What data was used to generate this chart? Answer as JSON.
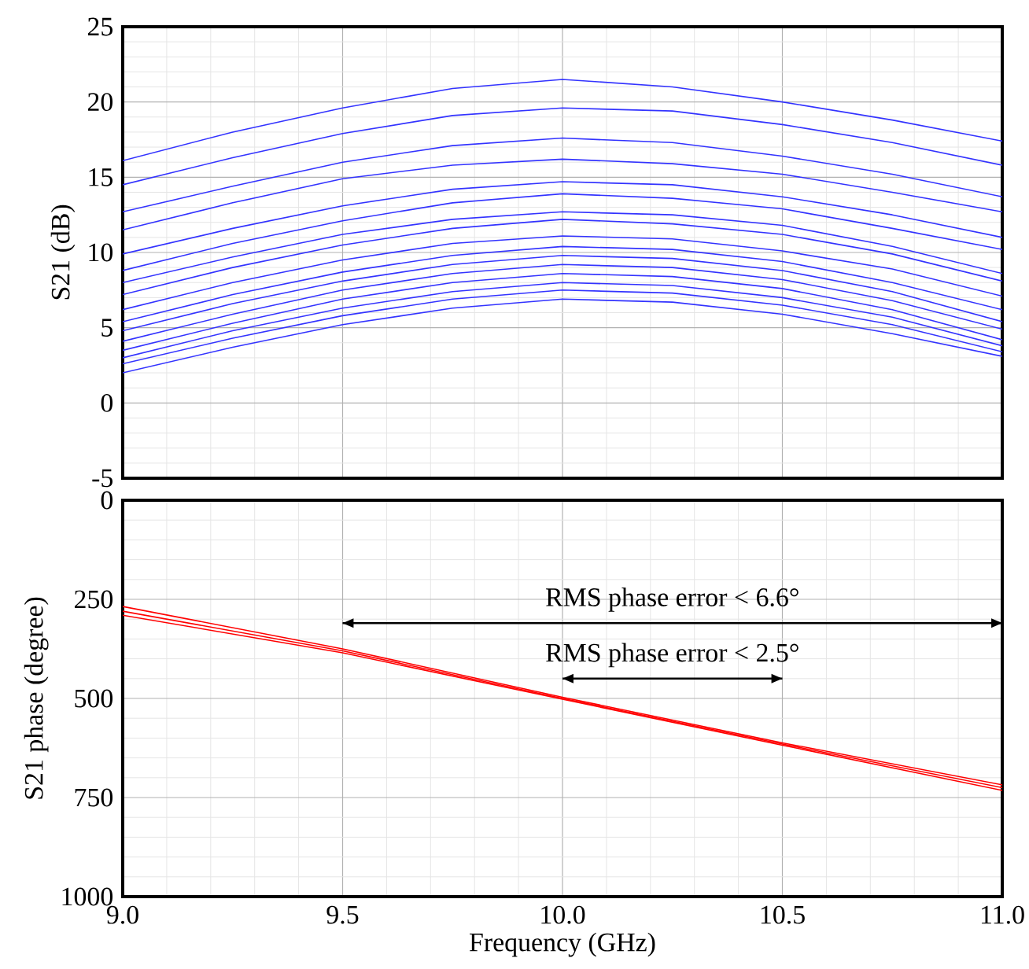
{
  "chart_data": [
    {
      "type": "line",
      "ylabel": "S21 (dB)",
      "x": [
        9.0,
        9.25,
        9.5,
        9.75,
        10.0,
        10.25,
        10.5,
        10.75,
        11.0
      ],
      "xlim": [
        9.0,
        11.0
      ],
      "xticks": [
        9.0,
        9.5,
        10.0,
        10.5,
        11.0
      ],
      "ylim": [
        -5,
        25
      ],
      "yticks": [
        -5,
        0,
        5,
        10,
        15,
        20,
        25
      ],
      "tick_labels": "y",
      "grid": true,
      "marker": "none",
      "line_style": "solid",
      "series": [
        {
          "color": "#3333ff",
          "values": [
            16.1,
            18.0,
            19.6,
            20.9,
            21.5,
            21.0,
            20.0,
            18.8,
            17.4
          ]
        },
        {
          "color": "#3333ff",
          "values": [
            14.5,
            16.3,
            17.9,
            19.1,
            19.6,
            19.4,
            18.5,
            17.3,
            15.8
          ]
        },
        {
          "color": "#3333ff",
          "values": [
            12.7,
            14.4,
            16.0,
            17.1,
            17.6,
            17.3,
            16.4,
            15.2,
            13.7
          ]
        },
        {
          "color": "#3333ff",
          "values": [
            11.5,
            13.3,
            14.9,
            15.8,
            16.2,
            15.9,
            15.2,
            14.0,
            12.7
          ]
        },
        {
          "color": "#3333ff",
          "values": [
            9.9,
            11.6,
            13.1,
            14.2,
            14.7,
            14.5,
            13.7,
            12.5,
            11.0
          ]
        },
        {
          "color": "#3333ff",
          "values": [
            8.8,
            10.6,
            12.1,
            13.3,
            13.9,
            13.6,
            12.9,
            11.6,
            10.2
          ]
        },
        {
          "color": "#3333ff",
          "values": [
            8.0,
            9.7,
            11.2,
            12.2,
            12.7,
            12.5,
            11.8,
            10.4,
            8.6
          ]
        },
        {
          "color": "#3333ff",
          "values": [
            7.2,
            9.0,
            10.5,
            11.6,
            12.2,
            11.9,
            11.2,
            9.9,
            8.1
          ]
        },
        {
          "color": "#3333ff",
          "values": [
            6.2,
            8.0,
            9.5,
            10.6,
            11.1,
            10.9,
            10.1,
            8.9,
            7.1
          ]
        },
        {
          "color": "#3333ff",
          "values": [
            5.4,
            7.2,
            8.7,
            9.8,
            10.4,
            10.2,
            9.4,
            8.0,
            6.2
          ]
        },
        {
          "color": "#3333ff",
          "values": [
            4.8,
            6.6,
            8.1,
            9.2,
            9.8,
            9.6,
            8.8,
            7.4,
            5.4
          ]
        },
        {
          "color": "#3333ff",
          "values": [
            4.1,
            5.9,
            7.5,
            8.6,
            9.2,
            9.0,
            8.2,
            6.8,
            4.9
          ]
        },
        {
          "color": "#3333ff",
          "values": [
            3.5,
            5.3,
            6.9,
            8.0,
            8.6,
            8.4,
            7.6,
            6.2,
            4.2
          ]
        },
        {
          "color": "#3333ff",
          "values": [
            3.0,
            4.8,
            6.3,
            7.4,
            8.0,
            7.8,
            7.0,
            5.7,
            3.8
          ]
        },
        {
          "color": "#3333ff",
          "values": [
            2.6,
            4.3,
            5.8,
            6.9,
            7.5,
            7.3,
            6.5,
            5.2,
            3.4
          ]
        },
        {
          "color": "#3333ff",
          "values": [
            2.0,
            3.7,
            5.2,
            6.3,
            6.9,
            6.7,
            5.9,
            4.6,
            3.1
          ]
        }
      ]
    },
    {
      "type": "line",
      "xlabel": "Frequency (GHz)",
      "ylabel": "S21 phase (degree)",
      "x": [
        9.0,
        9.5,
        10.0,
        10.5,
        11.0
      ],
      "xlim": [
        9.0,
        11.0
      ],
      "xticks": [
        {
          "value": 9.0,
          "label": "9.0"
        },
        9.5,
        {
          "value": 10.0,
          "label": "10.0"
        },
        10.5,
        {
          "value": 11.0,
          "label": "11.0"
        }
      ],
      "ylim": [
        1000,
        0
      ],
      "yticks": [
        0,
        250,
        500,
        750,
        1000
      ],
      "grid": true,
      "marker": "none",
      "line_style": "solid",
      "series": [
        {
          "name": "RMS phase error < 6.6°",
          "color": "#000000",
          "x": [
            9.5,
            11.0
          ],
          "values": [
            310,
            310
          ]
        },
        {
          "name": "RMS phase error < 2.5°",
          "color": "#000000",
          "x": [
            10.0,
            10.5
          ],
          "values": [
            450,
            450
          ]
        },
        {
          "color": "#ff0000",
          "values": [
            268,
            375,
            497,
            612,
            718
          ]
        },
        {
          "color": "#ff0000",
          "values": [
            280,
            380,
            500,
            615,
            725
          ]
        },
        {
          "color": "#ff0000",
          "values": [
            290,
            385,
            502,
            618,
            732
          ]
        }
      ]
    }
  ]
}
